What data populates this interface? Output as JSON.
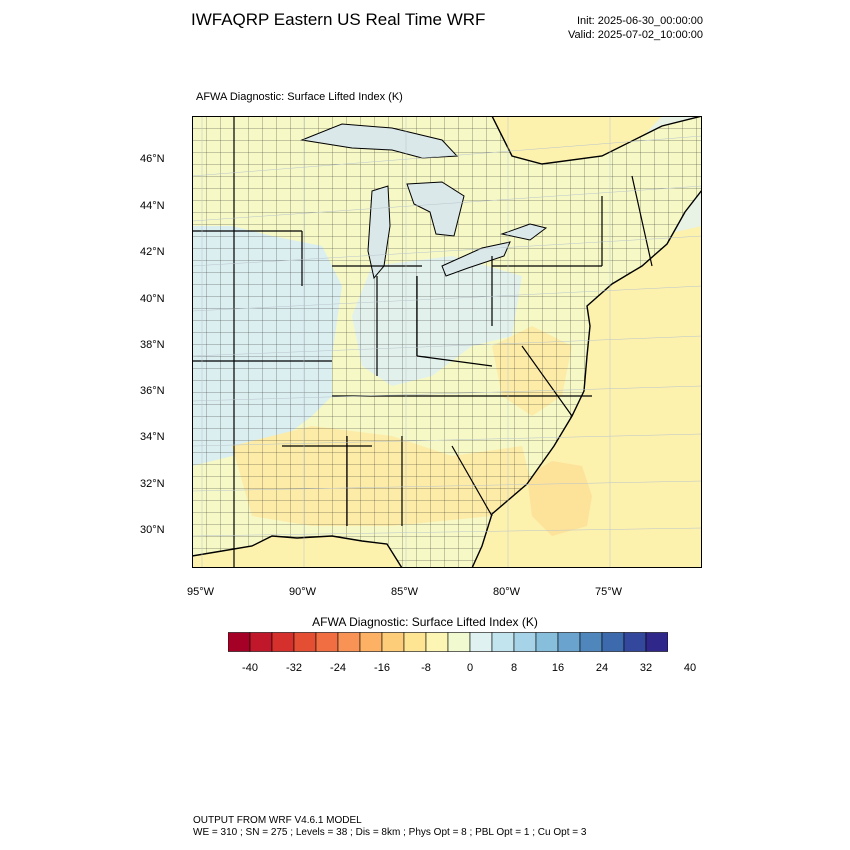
{
  "header": {
    "title": "IWFAQRP Eastern US Real Time WRF",
    "init": "Init: 2025-06-30_00:00:00",
    "valid": "Valid: 2025-07-02_10:00:00"
  },
  "map": {
    "caption": "AFWA Diagnostic: Surface Lifted Index   (K)",
    "lat_labels": [
      "46°N",
      "44°N",
      "42°N",
      "40°N",
      "38°N",
      "36°N",
      "34°N",
      "32°N",
      "30°N"
    ],
    "lon_labels": [
      "95°W",
      "90°W",
      "85°W",
      "80°W",
      "75°W"
    ],
    "colors": {
      "land_neutral": "#f6f8c6",
      "land_warm": "#fdeca8",
      "land_cool": "#dbeef0",
      "ocean": "#fdf1ae",
      "ocean_warm": "#fde29a",
      "great_lakes": "#dbe8ea",
      "lake_cool": "#c9e1ea",
      "border": "#000000"
    }
  },
  "colorbar": {
    "title": "AFWA Diagnostic: Surface Lifted Index  (K)",
    "ticks": [
      "-40",
      "-32",
      "-24",
      "-16",
      "-8",
      "0",
      "8",
      "16",
      "24",
      "32",
      "40"
    ],
    "colors": [
      "#a50026",
      "#c0182a",
      "#d6302c",
      "#e44f33",
      "#f16e43",
      "#f89355",
      "#fcb164",
      "#fdcd79",
      "#fee593",
      "#fcf5b4",
      "#f1f9d0",
      "#dff2f1",
      "#c2e4ef",
      "#a6d3e7",
      "#87bedc",
      "#6aa3cd",
      "#4f87bd",
      "#3d69ad",
      "#33479c",
      "#2f2789"
    ]
  },
  "footer": {
    "line1": "OUTPUT FROM WRF V4.6.1 MODEL",
    "line2": "WE = 310 ; SN = 275 ; Levels = 38 ; Dis = 8km ; Phys Opt = 8 ; PBL Opt = 1 ; Cu Opt = 3"
  }
}
